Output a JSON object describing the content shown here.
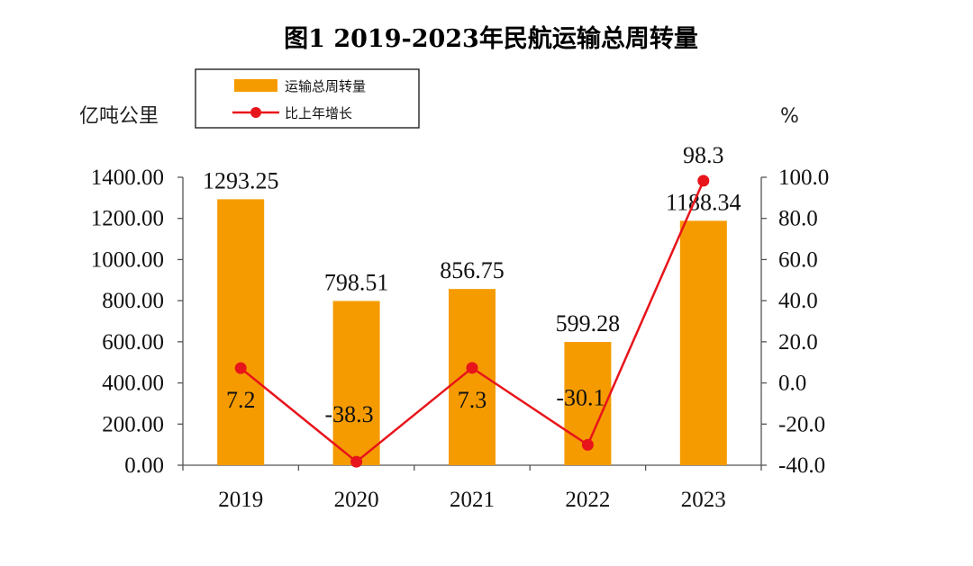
{
  "colors": {
    "bar": "#F59B00",
    "line": "#E8141B",
    "axis": "#555555"
  },
  "chart_data": {
    "type": "bar+line",
    "title": "图1  2019-2023年民航运输总周转量",
    "categories": [
      "2019",
      "2020",
      "2021",
      "2022",
      "2023"
    ],
    "left_axis": {
      "label": "亿吨公里",
      "range": [
        0,
        1400
      ],
      "ticks": [
        "0.00",
        "200.00",
        "400.00",
        "600.00",
        "800.00",
        "1000.00",
        "1200.00",
        "1400.00"
      ]
    },
    "right_axis": {
      "label": "%",
      "range": [
        -40,
        100
      ],
      "ticks": [
        "-40.0",
        "-20.0",
        "0.0",
        "20.0",
        "40.0",
        "60.0",
        "80.0",
        "100.0"
      ]
    },
    "series": [
      {
        "name": "运输总周转量",
        "kind": "bar",
        "axis": "left",
        "values": [
          1293.25,
          798.51,
          856.75,
          599.28,
          1188.34
        ],
        "labels": [
          "1293.25",
          "798.51",
          "856.75",
          "599.28",
          "1188.34"
        ]
      },
      {
        "name": "比上年增长",
        "kind": "line",
        "axis": "right",
        "values": [
          7.2,
          -38.3,
          7.3,
          -30.1,
          98.3
        ],
        "labels": [
          "7.2",
          "-38.3",
          "7.3",
          "-30.1",
          "98.3"
        ]
      }
    ],
    "legend": "top-left"
  }
}
